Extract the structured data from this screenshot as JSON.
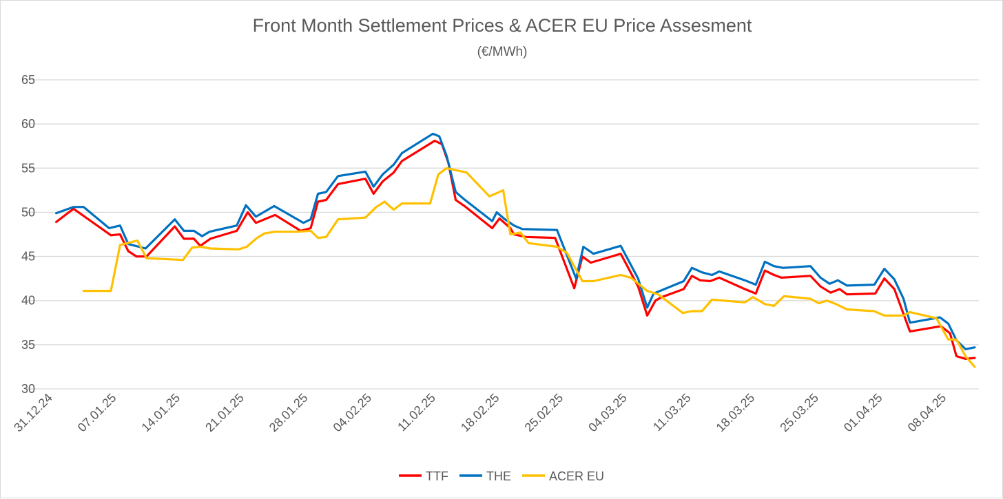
{
  "chart_data": {
    "type": "line",
    "title": "Front Month Settlement Prices & ACER EU Price Assesment",
    "subtitle": "(€/MWh)",
    "xlabel": "",
    "ylabel": "",
    "x_unit": "days since 31.12.24",
    "xlim": [
      0,
      102
    ],
    "ylim": [
      30,
      65
    ],
    "yticks": [
      30,
      35,
      40,
      45,
      50,
      55,
      60,
      65
    ],
    "xtick_days": [
      0,
      7,
      14,
      21,
      28,
      35,
      42,
      49,
      56,
      63,
      70,
      77,
      84,
      91,
      98
    ],
    "xtick_labels": [
      "31.12.24",
      "07.01.25",
      "14.01.25",
      "21.01.25",
      "28.01.25",
      "04.02.25",
      "11.02.25",
      "18.02.25",
      "25.02.25",
      "04.03.25",
      "11.03.25",
      "18.03.25",
      "25.03.25",
      "01.04.25",
      "08.04.25"
    ],
    "grid": true,
    "legend_position": "bottom",
    "series": [
      {
        "name": "TTF",
        "color": "#ff0000",
        "x": [
          0.8,
          2.7,
          6.8,
          7.8,
          8.7,
          9.6,
          10.7,
          13.8,
          14.8,
          15.9,
          16.6,
          17.7,
          20.6,
          21.8,
          22.7,
          24.8,
          27.6,
          28.7,
          29.5,
          30.4,
          31.7,
          34.7,
          35.6,
          36.6,
          37.8,
          38.7,
          42.3,
          43.1,
          43.8,
          44.6,
          45.7,
          48.6,
          49.4,
          50.6,
          51.0,
          52.3,
          55.5,
          57.6,
          58.5,
          59.4,
          62.7,
          64.6,
          65.6,
          66.5,
          67.2,
          69.6,
          70.5,
          71.4,
          72.5,
          73.5,
          76.3,
          77.5,
          78.5,
          79.5,
          80.3,
          83.5,
          84.6,
          85.7,
          86.7,
          87.5,
          90.6,
          91.6,
          92.7,
          94.4,
          97.8,
          98.8,
          99.5,
          100.5,
          101.5
        ],
        "values": [
          48.9,
          50.4,
          47.4,
          47.5,
          45.6,
          45.0,
          45.0,
          48.4,
          47.0,
          47.0,
          46.2,
          47.0,
          47.9,
          50.0,
          48.8,
          49.7,
          47.9,
          48.2,
          51.2,
          51.4,
          53.2,
          53.8,
          52.1,
          53.5,
          54.5,
          55.8,
          58.1,
          57.7,
          55.6,
          51.4,
          50.6,
          48.2,
          49.3,
          48.2,
          47.5,
          47.2,
          47.1,
          41.4,
          45.0,
          44.3,
          45.3,
          41.6,
          38.3,
          40.0,
          40.4,
          41.3,
          42.8,
          42.3,
          42.2,
          42.6,
          41.3,
          40.8,
          43.4,
          42.9,
          42.6,
          42.8,
          41.6,
          40.9,
          41.3,
          40.7,
          40.8,
          42.5,
          41.3,
          36.5,
          37.1,
          36.3,
          33.7,
          33.4,
          33.5
        ]
      },
      {
        "name": "THE",
        "color": "#0070c0",
        "x": [
          0.8,
          2.7,
          3.8,
          6.6,
          7.8,
          8.7,
          10.6,
          13.8,
          14.8,
          15.9,
          16.8,
          17.6,
          20.6,
          21.6,
          22.7,
          24.7,
          27.9,
          28.7,
          29.5,
          30.4,
          31.7,
          34.7,
          35.6,
          36.6,
          37.8,
          38.7,
          42.1,
          42.8,
          43.6,
          44.6,
          45.5,
          48.6,
          49.1,
          50.0,
          51.0,
          51.9,
          55.7,
          57.8,
          58.6,
          59.7,
          62.7,
          64.6,
          65.6,
          66.3,
          69.6,
          70.5,
          71.6,
          72.7,
          73.5,
          76.3,
          77.5,
          78.5,
          79.5,
          80.5,
          83.5,
          84.6,
          85.6,
          86.5,
          87.5,
          90.5,
          91.6,
          92.7,
          93.7,
          94.4,
          97.7,
          98.6,
          99.5,
          100.5,
          101.5
        ],
        "values": [
          49.9,
          50.6,
          50.6,
          48.2,
          48.5,
          46.4,
          45.9,
          49.2,
          47.9,
          47.9,
          47.3,
          47.8,
          48.5,
          50.8,
          49.5,
          50.7,
          48.8,
          49.2,
          52.1,
          52.3,
          54.1,
          54.6,
          52.9,
          54.3,
          55.4,
          56.7,
          58.9,
          58.6,
          56.4,
          52.3,
          51.5,
          49.0,
          50.0,
          49.2,
          48.5,
          48.1,
          48.0,
          42.5,
          46.1,
          45.3,
          46.2,
          42.5,
          39.2,
          40.8,
          42.2,
          43.7,
          43.2,
          42.9,
          43.3,
          42.3,
          41.8,
          44.4,
          43.9,
          43.7,
          43.9,
          42.6,
          41.9,
          42.3,
          41.7,
          41.8,
          43.6,
          42.4,
          40.2,
          37.5,
          38.1,
          37.4,
          35.5,
          34.5,
          34.7
        ]
      },
      {
        "name": "ACER EU",
        "color": "#ffc000",
        "x": [
          3.8,
          6.8,
          7.8,
          9.7,
          10.7,
          14.7,
          15.7,
          16.6,
          17.7,
          20.8,
          21.7,
          22.7,
          23.6,
          24.8,
          27.2,
          28.7,
          29.5,
          30.4,
          31.7,
          34.7,
          35.9,
          36.8,
          37.8,
          38.7,
          41.8,
          42.7,
          43.6,
          45.8,
          48.3,
          49.8,
          50.6,
          51.7,
          52.6,
          55.7,
          56.8,
          58.5,
          59.7,
          62.7,
          63.8,
          65.6,
          66.8,
          69.5,
          70.5,
          71.6,
          72.7,
          76.3,
          77.2,
          78.5,
          79.5,
          80.6,
          83.5,
          84.4,
          85.3,
          86.3,
          87.5,
          90.5,
          91.6,
          93.7,
          94.4,
          97.3,
          98.6,
          99.5,
          100.5,
          101.5
        ],
        "values": [
          41.1,
          41.1,
          46.3,
          46.8,
          44.8,
          44.6,
          46.0,
          46.1,
          45.9,
          45.8,
          46.1,
          47.0,
          47.6,
          47.8,
          47.8,
          47.9,
          47.1,
          47.2,
          49.2,
          49.4,
          50.6,
          51.2,
          50.3,
          51.0,
          51.0,
          54.3,
          55.0,
          54.5,
          51.8,
          52.5,
          47.5,
          47.7,
          46.5,
          46.1,
          45.4,
          42.2,
          42.2,
          42.9,
          42.6,
          41.1,
          40.7,
          38.6,
          38.8,
          38.8,
          40.1,
          39.8,
          40.4,
          39.6,
          39.4,
          40.5,
          40.2,
          39.7,
          40.0,
          39.6,
          39.0,
          38.8,
          38.3,
          38.3,
          38.7,
          38.0,
          35.6,
          35.6,
          33.7,
          32.5
        ]
      }
    ]
  }
}
